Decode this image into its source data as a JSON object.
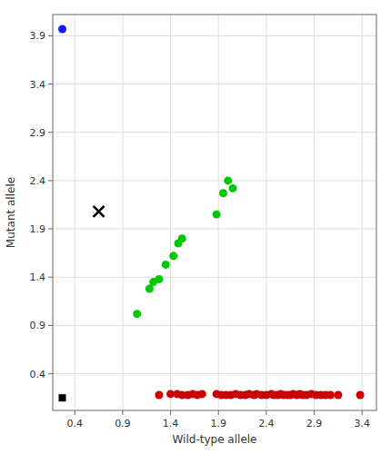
{
  "chart_data": {
    "type": "scatter",
    "xlabel": "Wild-type allele",
    "ylabel": "Mutant allele",
    "xlim": [
      0.17,
      3.55
    ],
    "ylim": [
      0.02,
      4.12
    ],
    "xticks": [
      0.4,
      0.9,
      1.4,
      1.9,
      2.4,
      2.9,
      3.4
    ],
    "yticks": [
      0.4,
      0.9,
      1.4,
      1.9,
      2.4,
      2.9,
      3.4,
      3.9
    ],
    "grid": true,
    "series": [
      {
        "color": "#1a1aff",
        "marker": "circle",
        "x": [
          0.27
        ],
        "values": [
          3.97
        ]
      },
      {
        "color": "#00c800",
        "marker": "circle",
        "x": [
          1.05,
          1.18,
          1.22,
          1.28,
          1.35,
          1.43,
          1.48,
          1.52,
          1.88,
          1.95,
          2.0,
          2.05
        ],
        "values": [
          1.02,
          1.28,
          1.35,
          1.38,
          1.53,
          1.62,
          1.75,
          1.8,
          2.05,
          2.27,
          2.4,
          2.32
        ]
      },
      {
        "color": "#cc0000",
        "marker": "circle",
        "x": [
          1.28,
          1.4,
          1.47,
          1.52,
          1.58,
          1.63,
          1.68,
          1.73,
          1.88,
          1.93,
          1.98,
          2.03,
          2.08,
          2.13,
          2.18,
          2.22,
          2.27,
          2.3,
          2.35,
          2.4,
          2.45,
          2.48,
          2.52,
          2.55,
          2.58,
          2.62,
          2.65,
          2.68,
          2.72,
          2.75,
          2.78,
          2.82,
          2.87,
          2.92,
          2.97,
          3.02,
          3.07,
          3.15,
          3.38
        ],
        "values": [
          0.18,
          0.19,
          0.19,
          0.18,
          0.18,
          0.19,
          0.18,
          0.19,
          0.19,
          0.18,
          0.18,
          0.18,
          0.19,
          0.18,
          0.18,
          0.19,
          0.18,
          0.19,
          0.18,
          0.18,
          0.19,
          0.18,
          0.18,
          0.19,
          0.18,
          0.18,
          0.18,
          0.19,
          0.18,
          0.19,
          0.18,
          0.18,
          0.19,
          0.18,
          0.18,
          0.18,
          0.18,
          0.18,
          0.18
        ]
      },
      {
        "color": "#000000",
        "marker": "x",
        "x": [
          0.65
        ],
        "values": [
          2.08
        ]
      },
      {
        "color": "#000000",
        "marker": "square",
        "x": [
          0.27
        ],
        "values": [
          0.15
        ]
      }
    ]
  }
}
